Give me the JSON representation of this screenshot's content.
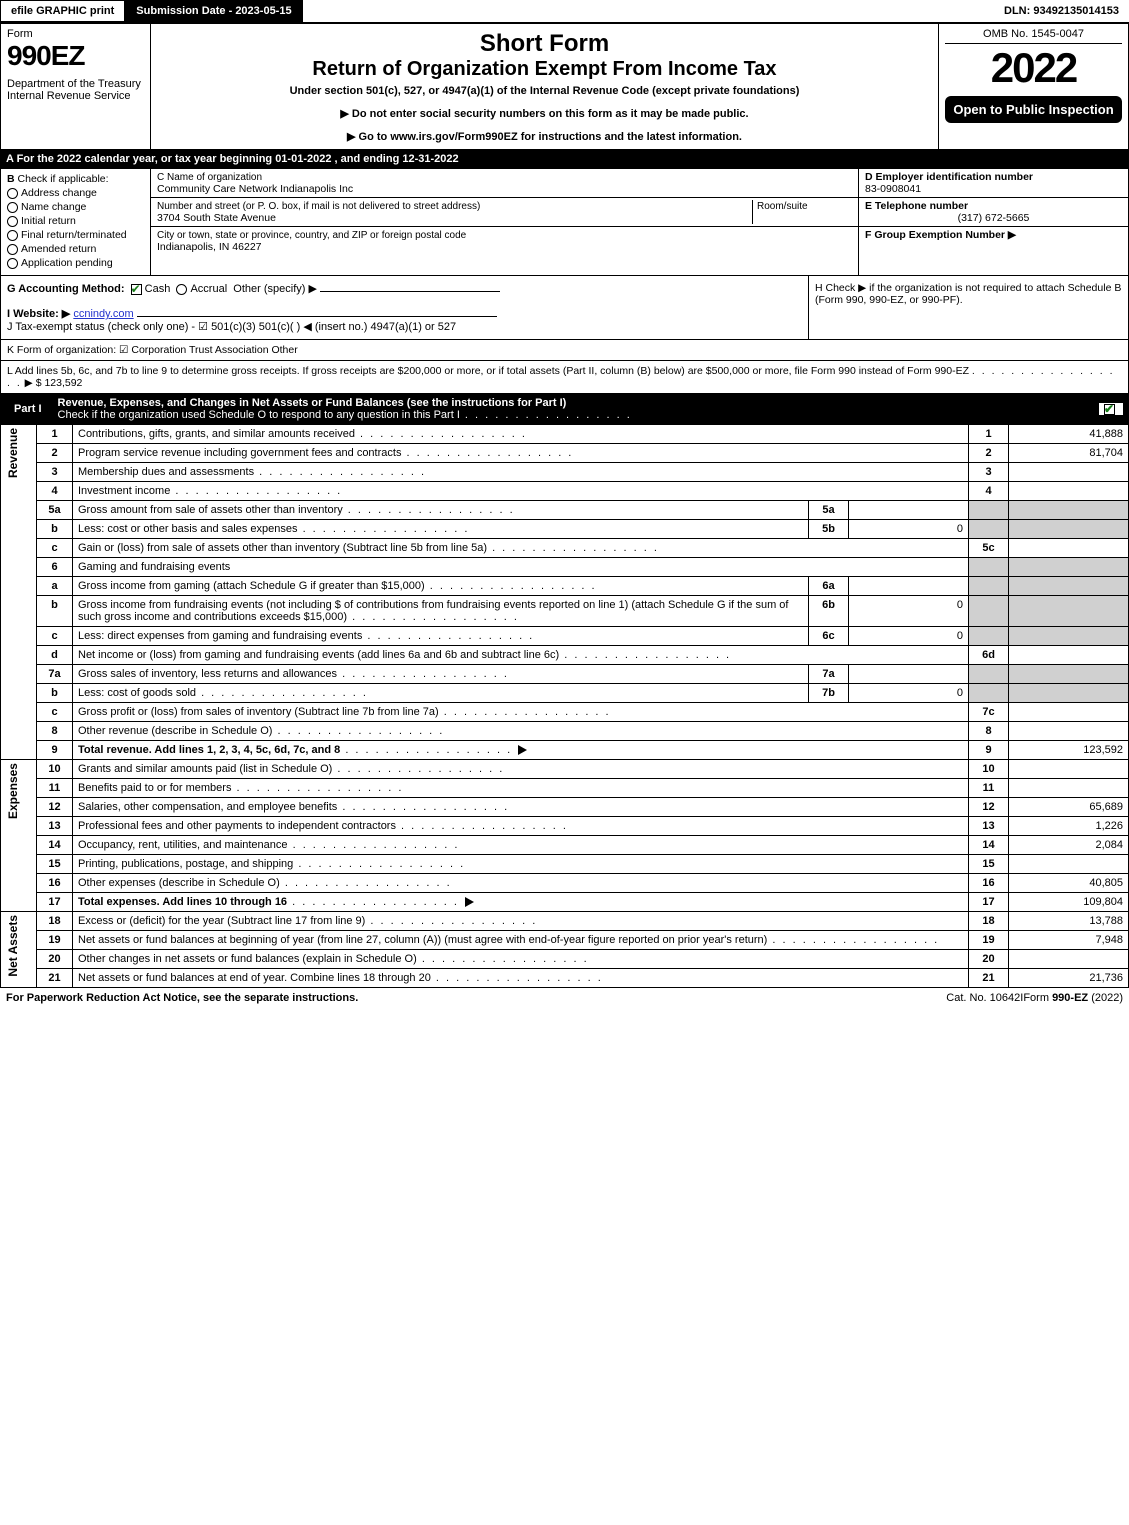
{
  "topbar": {
    "efile": "efile GRAPHIC print",
    "submission": "Submission Date - 2023-05-15",
    "dln": "DLN: 93492135014153"
  },
  "header": {
    "form_label": "Form",
    "form_no": "990EZ",
    "dept": "Department of the Treasury\nInternal Revenue Service",
    "title1": "Short Form",
    "title2": "Return of Organization Exempt From Income Tax",
    "sub": "Under section 501(c), 527, or 4947(a)(1) of the Internal Revenue Code (except private foundations)",
    "note1": "▶ Do not enter social security numbers on this form as it may be made public.",
    "note2": "▶ Go to www.irs.gov/Form990EZ for instructions and the latest information.",
    "note2_link": "www.irs.gov/Form990EZ",
    "omb": "OMB No. 1545-0047",
    "year": "2022",
    "badge": "Open to Public Inspection"
  },
  "row_a": "A  For the 2022 calendar year, or tax year beginning 01-01-2022 , and ending 12-31-2022",
  "section_b": {
    "label": "B",
    "intro": "Check if applicable:",
    "opts": [
      "Address change",
      "Name change",
      "Initial return",
      "Final return/terminated",
      "Amended return",
      "Application pending"
    ]
  },
  "section_c": {
    "name_label": "C Name of organization",
    "name": "Community Care Network Indianapolis Inc",
    "addr_label": "Number and street (or P. O. box, if mail is not delivered to street address)",
    "room_label": "Room/suite",
    "addr": "3704 South State Avenue",
    "city_label": "City or town, state or province, country, and ZIP or foreign postal code",
    "city": "Indianapolis, IN  46227"
  },
  "section_d": {
    "label": "D Employer identification number",
    "value": "83-0908041"
  },
  "section_e": {
    "label": "E Telephone number",
    "value": "(317) 672-5665"
  },
  "section_f": {
    "label": "F Group Exemption Number  ▶",
    "value": ""
  },
  "line_g": {
    "label": "G Accounting Method:",
    "cash": "Cash",
    "accrual": "Accrual",
    "other": "Other (specify) ▶"
  },
  "line_h": "H   Check ▶     if the organization is not required to attach Schedule B (Form 990, 990-EZ, or 990-PF).",
  "line_i": {
    "label": "I Website: ▶",
    "value": "ccnindy.com"
  },
  "line_j": "J Tax-exempt status (check only one) -  ☑ 501(c)(3)   501(c)(  ) ◀ (insert no.)   4947(a)(1) or   527",
  "line_k": "K Form of organization:  ☑ Corporation   Trust   Association   Other",
  "line_l": {
    "text": "L Add lines 5b, 6c, and 7b to line 9 to determine gross receipts. If gross receipts are $200,000 or more, or if total assets (Part II, column (B) below) are $500,000 or more, file Form 990 instead of Form 990-EZ",
    "amount": "$ 123,592"
  },
  "part1": {
    "label": "Part I",
    "title": "Revenue, Expenses, and Changes in Net Assets or Fund Balances (see the instructions for Part I)",
    "sub": "Check if the organization used Schedule O to respond to any question in this Part I"
  },
  "sections": {
    "revenue": "Revenue",
    "expenses": "Expenses",
    "netassets": "Net Assets"
  },
  "lines": [
    {
      "n": "1",
      "desc": "Contributions, gifts, grants, and similar amounts received",
      "ln": "1",
      "amt": "41,888"
    },
    {
      "n": "2",
      "desc": "Program service revenue including government fees and contracts",
      "ln": "2",
      "amt": "81,704"
    },
    {
      "n": "3",
      "desc": "Membership dues and assessments",
      "ln": "3",
      "amt": ""
    },
    {
      "n": "4",
      "desc": "Investment income",
      "ln": "4",
      "amt": ""
    },
    {
      "n": "5a",
      "desc": "Gross amount from sale of assets other than inventory",
      "inner": "5a",
      "inneramt": "",
      "shade": true
    },
    {
      "n": "b",
      "desc": "Less: cost or other basis and sales expenses",
      "inner": "5b",
      "inneramt": "0",
      "shade": true
    },
    {
      "n": "c",
      "desc": "Gain or (loss) from sale of assets other than inventory (Subtract line 5b from line 5a)",
      "ln": "5c",
      "amt": ""
    },
    {
      "n": "6",
      "desc": "Gaming and fundraising events",
      "shade": true,
      "noline": true
    },
    {
      "n": "a",
      "desc": "Gross income from gaming (attach Schedule G if greater than $15,000)",
      "inner": "6a",
      "inneramt": "",
      "shade": true
    },
    {
      "n": "b",
      "desc": "Gross income from fundraising events (not including $                    of contributions from fundraising events reported on line 1) (attach Schedule G if the sum of such gross income and contributions exceeds $15,000)",
      "inner": "6b",
      "inneramt": "0",
      "shade": true
    },
    {
      "n": "c",
      "desc": "Less: direct expenses from gaming and fundraising events",
      "inner": "6c",
      "inneramt": "0",
      "shade": true
    },
    {
      "n": "d",
      "desc": "Net income or (loss) from gaming and fundraising events (add lines 6a and 6b and subtract line 6c)",
      "ln": "6d",
      "amt": ""
    },
    {
      "n": "7a",
      "desc": "Gross sales of inventory, less returns and allowances",
      "inner": "7a",
      "inneramt": "",
      "shade": true
    },
    {
      "n": "b",
      "desc": "Less: cost of goods sold",
      "inner": "7b",
      "inneramt": "0",
      "shade": true
    },
    {
      "n": "c",
      "desc": "Gross profit or (loss) from sales of inventory (Subtract line 7b from line 7a)",
      "ln": "7c",
      "amt": ""
    },
    {
      "n": "8",
      "desc": "Other revenue (describe in Schedule O)",
      "ln": "8",
      "amt": ""
    },
    {
      "n": "9",
      "desc": "Total revenue. Add lines 1, 2, 3, 4, 5c, 6d, 7c, and 8",
      "ln": "9",
      "amt": "123,592",
      "bold": true,
      "arrow": true
    }
  ],
  "expense_lines": [
    {
      "n": "10",
      "desc": "Grants and similar amounts paid (list in Schedule O)",
      "ln": "10",
      "amt": ""
    },
    {
      "n": "11",
      "desc": "Benefits paid to or for members",
      "ln": "11",
      "amt": ""
    },
    {
      "n": "12",
      "desc": "Salaries, other compensation, and employee benefits",
      "ln": "12",
      "amt": "65,689"
    },
    {
      "n": "13",
      "desc": "Professional fees and other payments to independent contractors",
      "ln": "13",
      "amt": "1,226"
    },
    {
      "n": "14",
      "desc": "Occupancy, rent, utilities, and maintenance",
      "ln": "14",
      "amt": "2,084"
    },
    {
      "n": "15",
      "desc": "Printing, publications, postage, and shipping",
      "ln": "15",
      "amt": ""
    },
    {
      "n": "16",
      "desc": "Other expenses (describe in Schedule O)",
      "ln": "16",
      "amt": "40,805"
    },
    {
      "n": "17",
      "desc": "Total expenses. Add lines 10 through 16",
      "ln": "17",
      "amt": "109,804",
      "bold": true,
      "arrow": true
    }
  ],
  "net_lines": [
    {
      "n": "18",
      "desc": "Excess or (deficit) for the year (Subtract line 17 from line 9)",
      "ln": "18",
      "amt": "13,788"
    },
    {
      "n": "19",
      "desc": "Net assets or fund balances at beginning of year (from line 27, column (A)) (must agree with end-of-year figure reported on prior year's return)",
      "ln": "19",
      "amt": "7,948"
    },
    {
      "n": "20",
      "desc": "Other changes in net assets or fund balances (explain in Schedule O)",
      "ln": "20",
      "amt": ""
    },
    {
      "n": "21",
      "desc": "Net assets or fund balances at end of year. Combine lines 18 through 20",
      "ln": "21",
      "amt": "21,736"
    }
  ],
  "footer": {
    "left": "For Paperwork Reduction Act Notice, see the separate instructions.",
    "center": "Cat. No. 10642I",
    "right": "Form 990-EZ (2022)"
  }
}
